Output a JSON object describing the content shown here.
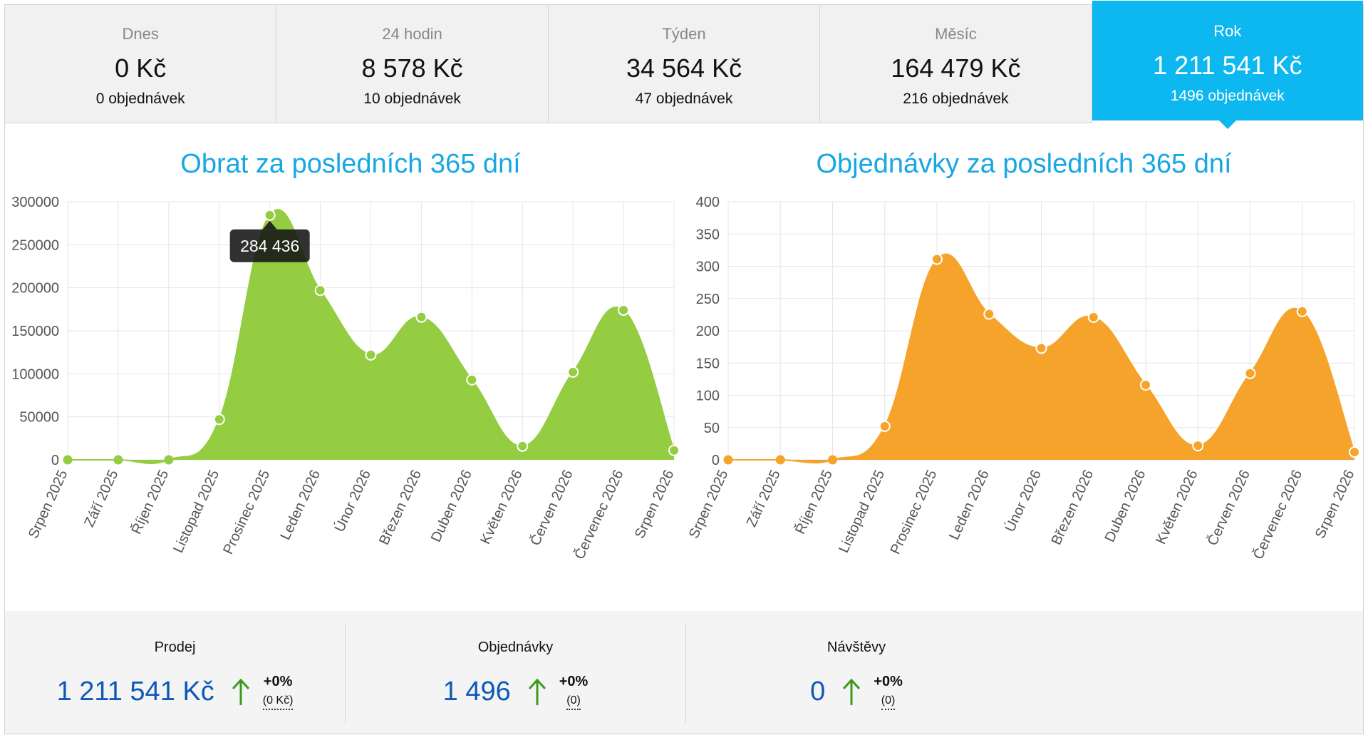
{
  "tabs": [
    {
      "label": "Dnes",
      "value": "0 Kč",
      "orders": "0 objednávek",
      "active": false
    },
    {
      "label": "24 hodin",
      "value": "8 578 Kč",
      "orders": "10 objednávek",
      "active": false
    },
    {
      "label": "Týden",
      "value": "34 564 Kč",
      "orders": "47 objednávek",
      "active": false
    },
    {
      "label": "Měsíc",
      "value": "164 479 Kč",
      "orders": "216 objednávek",
      "active": false
    },
    {
      "label": "Rok",
      "value": "1 211 541 Kč",
      "orders": "1496 objednávek",
      "active": true
    }
  ],
  "colors": {
    "accent": "#0db7f0",
    "title": "#17a7e2",
    "revenue_fill": "#94cc42",
    "orders_fill": "#f5a32a",
    "stat_value": "#0f58b8",
    "arrow_up": "#3c9a1c"
  },
  "chart_data": [
    {
      "type": "area",
      "title": "Obrat za posledních 365 dní",
      "categories": [
        "Srpen 2025",
        "Září 2025",
        "Říjen 2025",
        "Listopad 2025",
        "Prosinec 2025",
        "Leden 2026",
        "Únor 2026",
        "Březen 2026",
        "Duben 2026",
        "Květen 2026",
        "Červen 2026",
        "Červenec 2026",
        "Srpen 2026"
      ],
      "values": [
        0,
        0,
        0,
        47000,
        284436,
        197000,
        122000,
        166000,
        93000,
        16000,
        102000,
        174000,
        11000
      ],
      "ylim": [
        0,
        300000
      ],
      "yticks": [
        0,
        50000,
        100000,
        150000,
        200000,
        250000,
        300000
      ],
      "grid": true,
      "tooltip": {
        "index": 4,
        "text": "284 436"
      }
    },
    {
      "type": "area",
      "title": "Objednávky za posledních 365 dní",
      "categories": [
        "Srpen 2025",
        "Září 2025",
        "Říjen 2025",
        "Listopad 2025",
        "Prosinec 2025",
        "Leden 2026",
        "Únor 2026",
        "Březen 2026",
        "Duben 2026",
        "Květen 2026",
        "Červen 2026",
        "Červenec 2026",
        "Srpen 2026"
      ],
      "values": [
        0,
        0,
        0,
        52,
        311,
        226,
        173,
        221,
        116,
        22,
        134,
        230,
        12
      ],
      "ylim": [
        0,
        400
      ],
      "yticks": [
        0,
        50,
        100,
        150,
        200,
        250,
        300,
        350,
        400
      ],
      "grid": true
    }
  ],
  "stats": [
    {
      "label": "Prodej",
      "value": "1 211 541 Kč",
      "change": "+0%",
      "previous": "(0 Kč)"
    },
    {
      "label": "Objednávky",
      "value": "1 496",
      "change": "+0%",
      "previous": "(0)"
    },
    {
      "label": "Návštěvy",
      "value": "0",
      "change": "+0%",
      "previous": "(0)"
    }
  ]
}
